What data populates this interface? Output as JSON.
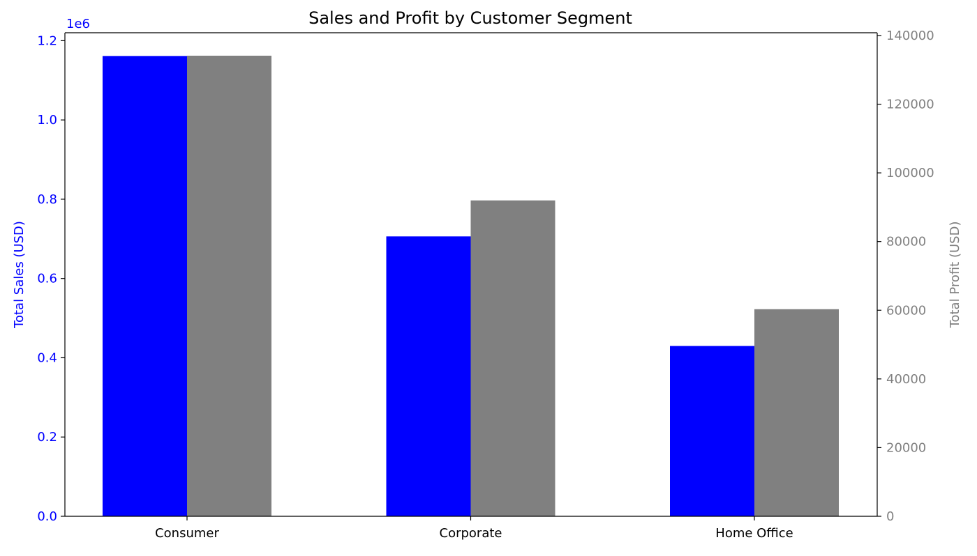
{
  "chart_data": {
    "type": "bar",
    "title": "Sales and Profit by Customer Segment",
    "categories": [
      "Consumer",
      "Corporate",
      "Home Office"
    ],
    "series": [
      {
        "axis": "left",
        "values": [
          1161401,
          706146,
          429653
        ]
      },
      {
        "axis": "right",
        "values": [
          134119,
          91979,
          60299
        ]
      }
    ],
    "left_axis": {
      "label": "Total Sales (USD)",
      "range": [
        0,
        1.22
      ],
      "ticks": [
        "0.0",
        "0.2",
        "0.4",
        "0.6",
        "0.8",
        "1.0",
        "1.2"
      ],
      "tick_values": [
        0,
        0.2,
        0.4,
        0.6,
        0.8,
        1.0,
        1.2
      ],
      "multiplier_label": "1e6",
      "color": "#0000ff"
    },
    "right_axis": {
      "label": "Total Profit (USD)",
      "range": [
        0,
        140800
      ],
      "ticks": [
        "0",
        "20000",
        "40000",
        "60000",
        "80000",
        "100000",
        "120000",
        "140000"
      ],
      "tick_values": [
        0,
        20000,
        40000,
        60000,
        80000,
        100000,
        120000,
        140000
      ],
      "color": "#808080"
    },
    "colors": {
      "sales_bar": "#0000ff",
      "profit_bar": "#808080"
    },
    "grid": false
  }
}
